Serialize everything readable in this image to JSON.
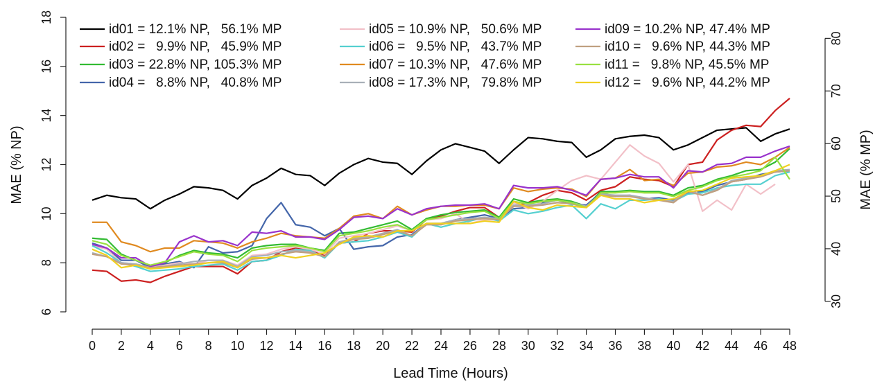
{
  "chart_data": {
    "type": "line",
    "x_label": "Lead Time (Hours)",
    "y_label": "MAE (% NP)",
    "y2_label": "MAE (% MP)",
    "x": [
      0,
      1,
      2,
      3,
      4,
      5,
      6,
      7,
      8,
      9,
      10,
      11,
      12,
      13,
      14,
      15,
      16,
      17,
      18,
      19,
      20,
      21,
      22,
      23,
      24,
      25,
      26,
      27,
      28,
      29,
      30,
      31,
      32,
      33,
      34,
      35,
      36,
      37,
      38,
      39,
      40,
      41,
      42,
      43,
      44,
      45,
      46,
      47,
      48
    ],
    "xlim": [
      0,
      48
    ],
    "xticks": [
      0,
      2,
      4,
      6,
      8,
      10,
      12,
      14,
      16,
      18,
      20,
      22,
      24,
      26,
      28,
      30,
      32,
      34,
      36,
      38,
      40,
      42,
      44,
      46,
      48
    ],
    "ylim": [
      6,
      18
    ],
    "yticks": [
      6,
      8,
      10,
      12,
      14,
      16,
      18
    ],
    "y2lim": [
      28.0,
      84.0
    ],
    "y2ticks": [
      30,
      40,
      50,
      60,
      70,
      80
    ],
    "series": [
      {
        "name": "id01 = 12.1% NP,   56.1% MP",
        "color": "#000000",
        "values": [
          10.55,
          10.75,
          10.65,
          10.6,
          10.2,
          10.55,
          10.8,
          11.1,
          11.05,
          10.95,
          10.6,
          11.15,
          11.45,
          11.85,
          11.6,
          11.55,
          11.15,
          11.65,
          12.0,
          12.25,
          12.1,
          12.05,
          11.6,
          12.15,
          12.6,
          12.85,
          12.7,
          12.55,
          12.05,
          12.6,
          13.1,
          13.05,
          12.95,
          12.9,
          12.3,
          12.6,
          13.05,
          13.15,
          13.2,
          13.1,
          12.6,
          12.8,
          13.1,
          13.4,
          13.45,
          13.5,
          12.95,
          13.25,
          13.45
        ]
      },
      {
        "name": "id02 =   9.9% NP,   45.9% MP",
        "color": "#cc2020",
        "values": [
          7.7,
          7.65,
          7.25,
          7.3,
          7.2,
          7.45,
          7.65,
          7.85,
          7.85,
          7.85,
          7.55,
          8.05,
          8.1,
          8.45,
          8.6,
          8.5,
          8.3,
          8.8,
          8.85,
          9.2,
          9.3,
          9.3,
          9.25,
          9.75,
          9.9,
          10.1,
          10.25,
          10.25,
          9.85,
          10.3,
          10.45,
          10.75,
          10.95,
          10.85,
          10.55,
          10.95,
          11.1,
          11.5,
          11.4,
          11.35,
          11.1,
          12.0,
          12.1,
          13.0,
          13.4,
          13.6,
          13.55,
          14.2,
          14.7
        ]
      },
      {
        "name": "id03 = 22.8% NP, 105.3% MP",
        "color": "#33bb33",
        "values": [
          9.0,
          8.95,
          8.35,
          8.1,
          7.85,
          8.0,
          8.3,
          8.5,
          8.4,
          8.35,
          8.2,
          8.6,
          8.7,
          8.75,
          8.75,
          8.6,
          8.5,
          9.2,
          9.25,
          9.4,
          9.55,
          9.7,
          9.35,
          9.8,
          9.95,
          10.05,
          10.1,
          10.15,
          9.85,
          10.6,
          10.45,
          10.55,
          10.6,
          10.5,
          10.3,
          10.9,
          10.9,
          10.95,
          10.9,
          10.9,
          10.75,
          11.05,
          11.15,
          11.4,
          11.55,
          11.75,
          11.8,
          12.1,
          12.65
        ]
      },
      {
        "name": "id04 =   8.8% NP,   40.8% MP",
        "color": "#4466aa",
        "values": [
          8.8,
          8.6,
          8.1,
          8.1,
          7.8,
          7.95,
          8.05,
          7.8,
          8.65,
          8.4,
          8.45,
          8.7,
          9.8,
          10.45,
          9.55,
          9.45,
          9.1,
          9.4,
          8.55,
          8.65,
          8.7,
          9.05,
          9.15,
          9.6,
          9.6,
          9.75,
          9.85,
          9.95,
          9.8,
          10.2,
          10.25,
          10.45,
          10.55,
          10.4,
          10.35,
          10.85,
          10.7,
          10.75,
          10.6,
          10.65,
          10.55,
          10.85,
          10.9,
          11.15,
          11.3,
          11.4,
          11.6,
          11.7,
          11.75
        ]
      },
      {
        "name": "id05 = 10.9% NP,   50.6% MP",
        "color": "#f2c0c8",
        "values": [
          8.7,
          8.55,
          8.0,
          7.95,
          7.8,
          7.9,
          8.0,
          7.95,
          8.1,
          8.1,
          7.9,
          8.3,
          8.35,
          8.55,
          8.65,
          8.55,
          8.35,
          9.0,
          9.1,
          9.2,
          9.35,
          9.5,
          9.3,
          9.75,
          9.8,
          10.0,
          9.6,
          9.75,
          9.75,
          10.45,
          10.2,
          10.5,
          10.95,
          11.35,
          11.55,
          11.4,
          12.1,
          12.8,
          12.35,
          12.05,
          11.3,
          12.0,
          10.1,
          10.55,
          10.15,
          11.2,
          10.8,
          11.2,
          null
        ]
      },
      {
        "name": "id06 =   9.5% NP,   43.7% MP",
        "color": "#55d0d0",
        "values": [
          8.7,
          8.4,
          8.0,
          7.85,
          7.65,
          7.7,
          7.75,
          7.85,
          7.9,
          7.95,
          7.7,
          8.05,
          8.1,
          8.3,
          8.55,
          8.5,
          8.2,
          8.8,
          8.85,
          8.9,
          9.05,
          9.25,
          9.05,
          9.6,
          9.45,
          9.6,
          9.7,
          9.85,
          9.7,
          10.15,
          10.0,
          10.1,
          10.25,
          10.35,
          9.8,
          10.4,
          10.2,
          10.55,
          10.55,
          10.6,
          10.5,
          10.8,
          10.85,
          11.05,
          11.15,
          11.2,
          11.2,
          11.55,
          11.7
        ]
      },
      {
        "name": "id07 = 10.3% NP,   47.6% MP",
        "color": "#e08a20",
        "values": [
          9.65,
          9.65,
          8.85,
          8.7,
          8.45,
          8.6,
          8.6,
          8.9,
          8.85,
          8.8,
          8.6,
          8.85,
          9.0,
          9.2,
          9.1,
          9.05,
          9.0,
          9.4,
          9.9,
          10.0,
          9.8,
          10.3,
          9.95,
          10.15,
          10.3,
          10.3,
          10.35,
          10.35,
          10.2,
          11.05,
          10.9,
          11.0,
          11.05,
          11.0,
          10.7,
          11.4,
          11.45,
          11.8,
          11.35,
          11.4,
          11.15,
          11.65,
          11.7,
          11.9,
          11.95,
          12.1,
          12.0,
          12.3,
          12.7
        ]
      },
      {
        "name": "id08 = 17.3% NP,   79.8% MP",
        "color": "#a8b0b8",
        "values": [
          8.4,
          8.25,
          8.0,
          7.95,
          7.8,
          7.85,
          7.95,
          8.05,
          8.1,
          8.1,
          7.85,
          8.25,
          8.3,
          8.45,
          8.5,
          8.45,
          8.25,
          8.85,
          9.0,
          9.05,
          9.2,
          9.35,
          9.1,
          9.6,
          9.6,
          9.75,
          9.8,
          9.85,
          9.8,
          10.35,
          10.35,
          10.4,
          10.55,
          10.45,
          10.3,
          10.8,
          10.75,
          10.75,
          10.65,
          10.55,
          10.5,
          10.95,
          10.75,
          11.0,
          11.35,
          11.45,
          11.55,
          11.75,
          11.8
        ]
      },
      {
        "name": "id09 = 10.2% NP, 47.4% MP",
        "color": "#9933cc",
        "values": [
          8.75,
          8.6,
          8.2,
          8.2,
          7.85,
          8.0,
          8.85,
          9.1,
          8.85,
          8.9,
          8.7,
          9.25,
          9.2,
          9.3,
          9.05,
          9.05,
          8.95,
          9.35,
          9.85,
          9.9,
          9.8,
          10.2,
          9.95,
          10.2,
          10.3,
          10.35,
          10.35,
          10.4,
          10.2,
          11.15,
          11.05,
          11.05,
          11.1,
          10.95,
          10.75,
          11.4,
          11.45,
          11.6,
          11.5,
          11.5,
          11.05,
          11.75,
          11.7,
          12.0,
          12.05,
          12.3,
          12.3,
          12.55,
          12.75
        ]
      },
      {
        "name": "id10 =   9.6% NP, 44.3% MP",
        "color": "#c0a080",
        "values": [
          8.35,
          8.25,
          7.95,
          7.9,
          7.8,
          7.85,
          7.9,
          7.95,
          8.0,
          8.0,
          7.8,
          8.15,
          8.2,
          8.35,
          8.45,
          8.4,
          8.25,
          8.8,
          8.95,
          9.0,
          9.15,
          9.3,
          9.1,
          9.55,
          9.55,
          9.7,
          9.75,
          9.8,
          9.75,
          10.3,
          10.3,
          10.35,
          10.45,
          10.4,
          10.25,
          10.75,
          10.7,
          10.7,
          10.6,
          10.55,
          10.45,
          10.9,
          10.75,
          10.95,
          11.3,
          11.4,
          11.5,
          11.7,
          11.75
        ]
      },
      {
        "name": "id11 =   9.8% NP, 45.5% MP",
        "color": "#99e040",
        "values": [
          8.9,
          8.75,
          8.3,
          8.1,
          7.9,
          8.05,
          8.25,
          8.45,
          8.35,
          8.3,
          8.05,
          8.5,
          8.6,
          8.65,
          8.7,
          8.6,
          8.45,
          9.1,
          9.2,
          9.3,
          9.45,
          9.55,
          9.3,
          9.75,
          9.85,
          9.95,
          10.05,
          10.1,
          9.8,
          10.5,
          10.4,
          10.5,
          10.55,
          10.45,
          10.25,
          10.85,
          10.85,
          10.9,
          10.85,
          10.85,
          10.7,
          10.95,
          11.1,
          11.35,
          11.5,
          11.6,
          11.75,
          12.3,
          11.4
        ]
      },
      {
        "name": "id12 =   9.6% NP, 44.2% MP",
        "color": "#f0d020",
        "values": [
          8.55,
          8.3,
          7.8,
          7.9,
          7.75,
          7.8,
          7.85,
          7.9,
          8.0,
          8.05,
          7.8,
          8.2,
          8.2,
          8.3,
          8.2,
          8.3,
          8.4,
          8.75,
          9.05,
          9.1,
          9.05,
          9.3,
          9.3,
          9.6,
          9.6,
          9.6,
          9.6,
          9.7,
          9.65,
          10.5,
          10.25,
          10.15,
          10.35,
          10.3,
          10.25,
          10.75,
          10.6,
          10.6,
          10.45,
          10.55,
          10.6,
          10.9,
          10.95,
          11.2,
          11.45,
          11.5,
          11.55,
          11.75,
          12.0
        ]
      }
    ]
  }
}
